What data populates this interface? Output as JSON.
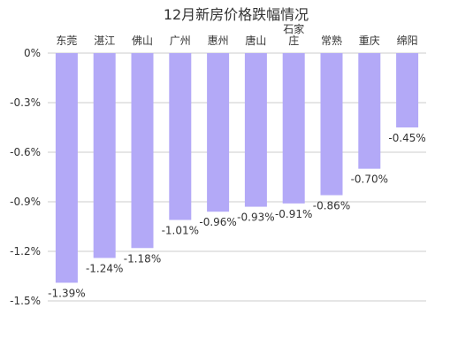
{
  "chart_data": {
    "type": "bar",
    "title": "12月新房价格跌幅情况",
    "categories": [
      [
        "东莞"
      ],
      [
        "湛江"
      ],
      [
        "佛山"
      ],
      [
        "广州"
      ],
      [
        "惠州"
      ],
      [
        "唐山"
      ],
      [
        "石家",
        "庄"
      ],
      [
        "常熟"
      ],
      [
        "重庆"
      ],
      [
        "绵阳"
      ]
    ],
    "values": [
      -1.39,
      -1.24,
      -1.18,
      -1.01,
      -0.96,
      -0.93,
      -0.91,
      -0.86,
      -0.7,
      -0.45
    ],
    "data_labels": [
      "-1.39%",
      "-1.24%",
      "-1.18%",
      "-1.01%",
      "-0.96%",
      "-0.93%",
      "-0.91%",
      "-0.86%",
      "-0.70%",
      "-0.45%"
    ],
    "ylim": [
      -1.5,
      0
    ],
    "y_ticks": [
      0,
      -0.3,
      -0.6,
      -0.9,
      -1.2,
      -1.5
    ],
    "y_tick_labels": [
      "0%",
      "-0.3%",
      "-0.6%",
      "-0.9%",
      "-1.2%",
      "-1.5%"
    ],
    "xlabel": "",
    "ylabel": "",
    "grid": true,
    "legend": false,
    "colors": {
      "bar": "#b3a9f7",
      "grid": "#cccccc",
      "text": "#333333"
    }
  }
}
